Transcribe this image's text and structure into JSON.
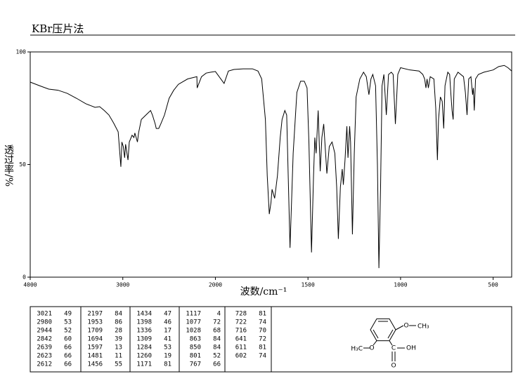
{
  "chart_data": {
    "type": "line",
    "title": "KBr压片法",
    "x_label": "波数/cm⁻¹",
    "y_label": "透过率/%",
    "xlim": [
      4000,
      400
    ],
    "x_scale_break": 2000,
    "xticks": [
      4000,
      3000,
      2000,
      1500,
      1000,
      500
    ],
    "ylim": [
      0,
      100
    ],
    "yticks": [
      0,
      50,
      100
    ],
    "color": "#000000",
    "x": [
      4000,
      3900,
      3800,
      3700,
      3600,
      3500,
      3400,
      3300,
      3250,
      3200,
      3150,
      3100,
      3050,
      3021,
      3010,
      2995,
      2980,
      2970,
      2944,
      2930,
      2900,
      2880,
      2870,
      2842,
      2830,
      2800,
      2750,
      2700,
      2680,
      2650,
      2639,
      2623,
      2612,
      2590,
      2550,
      2500,
      2450,
      2400,
      2300,
      2200,
      2197,
      2150,
      2100,
      2050,
      2000,
      1953,
      1930,
      1900,
      1850,
      1800,
      1770,
      1750,
      1730,
      1720,
      1709,
      1700,
      1694,
      1680,
      1665,
      1650,
      1640,
      1625,
      1615,
      1597,
      1580,
      1560,
      1540,
      1520,
      1505,
      1495,
      1481,
      1470,
      1463,
      1456,
      1445,
      1434,
      1425,
      1415,
      1398,
      1385,
      1370,
      1355,
      1345,
      1336,
      1325,
      1315,
      1309,
      1300,
      1290,
      1284,
      1275,
      1270,
      1260,
      1250,
      1240,
      1220,
      1200,
      1185,
      1171,
      1160,
      1150,
      1135,
      1125,
      1117,
      1108,
      1100,
      1090,
      1077,
      1065,
      1050,
      1040,
      1028,
      1015,
      1000,
      950,
      900,
      880,
      870,
      863,
      857,
      850,
      840,
      820,
      810,
      801,
      795,
      785,
      775,
      767,
      760,
      745,
      735,
      728,
      722,
      716,
      710,
      690,
      660,
      650,
      641,
      632,
      620,
      611,
      607,
      602,
      595,
      580,
      550,
      500,
      470,
      440,
      420,
      400
    ],
    "values": [
      86.6,
      85,
      83.5,
      83,
      81.6,
      79.4,
      77,
      75.4,
      75.7,
      74,
      72,
      68.5,
      64.5,
      49,
      60,
      58,
      53,
      59,
      52,
      60,
      63,
      62,
      64,
      60,
      64,
      70,
      72,
      74,
      72,
      68,
      66,
      66,
      66,
      68,
      72,
      79.4,
      83,
      85.6,
      88,
      89,
      84,
      89,
      90.6,
      91,
      91.3,
      86,
      91.5,
      92.2,
      92.5,
      92.5,
      91.5,
      88,
      70,
      45,
      28,
      33,
      39,
      35,
      45,
      62,
      70,
      74,
      72,
      13,
      55,
      82,
      87,
      87,
      84,
      60,
      11,
      45,
      62,
      55,
      74,
      47,
      62,
      68,
      46,
      58,
      60,
      55,
      40,
      17,
      40,
      48,
      41,
      52,
      67,
      53,
      67,
      60,
      19,
      55,
      80,
      88,
      91,
      89,
      81,
      88,
      90,
      85,
      50,
      4,
      40,
      85,
      90,
      72,
      90,
      91,
      90,
      68,
      90,
      93,
      92,
      91.5,
      90,
      88,
      84,
      88,
      84,
      89,
      88,
      75,
      52,
      70,
      80,
      78,
      66,
      85,
      91,
      90,
      81,
      74,
      70,
      88,
      91,
      89,
      82,
      72,
      88,
      89,
      81,
      84,
      74,
      88,
      90,
      91,
      92,
      93.5,
      94,
      93,
      91.5
    ]
  },
  "peak_table": [
    [
      3021,
      49
    ],
    [
      2980,
      53
    ],
    [
      2944,
      52
    ],
    [
      2842,
      60
    ],
    [
      2639,
      66
    ],
    [
      2623,
      66
    ],
    [
      2612,
      66
    ],
    [
      2197,
      84
    ],
    [
      1953,
      86
    ],
    [
      1709,
      28
    ],
    [
      1694,
      39
    ],
    [
      1597,
      13
    ],
    [
      1481,
      11
    ],
    [
      1456,
      55
    ],
    [
      1434,
      47
    ],
    [
      1398,
      46
    ],
    [
      1336,
      17
    ],
    [
      1309,
      41
    ],
    [
      1284,
      53
    ],
    [
      1260,
      19
    ],
    [
      1171,
      81
    ],
    [
      1117,
      4
    ],
    [
      1077,
      72
    ],
    [
      1028,
      68
    ],
    [
      863,
      84
    ],
    [
      850,
      84
    ],
    [
      801,
      52
    ],
    [
      767,
      66
    ],
    [
      728,
      81
    ],
    [
      722,
      74
    ],
    [
      716,
      70
    ],
    [
      641,
      72
    ],
    [
      611,
      81
    ],
    [
      602,
      74
    ]
  ],
  "structure": {
    "labels": [
      "O",
      "CH₃",
      "H₃C",
      "O",
      "C",
      "OH",
      "O"
    ]
  }
}
